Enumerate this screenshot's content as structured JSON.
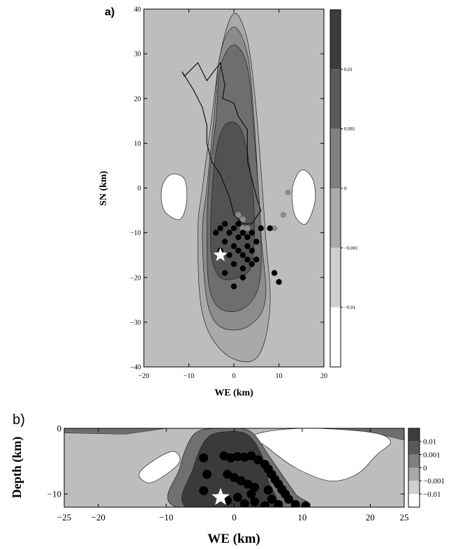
{
  "chart_data": [
    {
      "panel_label": "a)",
      "type": "heatmap",
      "xlabel": "WE (km)",
      "ylabel": "SN (km)",
      "xlim": [
        -20,
        20
      ],
      "ylim": [
        -40,
        40
      ],
      "xticks": [
        -20,
        -10,
        0,
        10,
        20
      ],
      "yticks": [
        -40,
        -30,
        -20,
        -10,
        0,
        10,
        20,
        30,
        40
      ],
      "colorbar": {
        "levels": [
          "0.01",
          "0.001",
          "0",
          "-0.001",
          "-0.01"
        ],
        "colors": [
          "#3c3c3c",
          "#5a5a5a",
          "#808080",
          "#a9a9a9",
          "#cfcfcf",
          "#ffffff"
        ]
      },
      "background_color": "#bdbdbd",
      "contours": [
        {
          "level": "-0.01",
          "color": "#ffffff",
          "points": [
            [
              -14,
              3
            ],
            [
              -11,
              2
            ],
            [
              -10.5,
              -3
            ],
            [
              -12,
              -7
            ],
            [
              -15.5,
              -5
            ],
            [
              -16,
              0
            ]
          ]
        },
        {
          "level": "-0.01",
          "color": "#ffffff",
          "points": [
            [
              15,
              4
            ],
            [
              17.5,
              2
            ],
            [
              18,
              -3
            ],
            [
              16,
              -8
            ],
            [
              13.5,
              -6
            ],
            [
              13,
              0
            ]
          ]
        },
        {
          "level": "0",
          "color": "#a9a9a9",
          "points": [
            [
              -5,
              15
            ],
            [
              -3,
              30
            ],
            [
              0,
              39
            ],
            [
              3,
              33
            ],
            [
              5,
              17
            ],
            [
              7,
              -10
            ],
            [
              8,
              -27
            ],
            [
              5,
              -38
            ],
            [
              -2,
              -37
            ],
            [
              -7,
              -28
            ],
            [
              -8,
              -10
            ],
            [
              -7,
              0
            ]
          ]
        },
        {
          "level": "0.001",
          "color": "#8c8c8c",
          "points": [
            [
              -4.5,
              15
            ],
            [
              -3,
              30
            ],
            [
              0,
              36
            ],
            [
              3,
              30
            ],
            [
              4.5,
              15
            ],
            [
              6,
              -10
            ],
            [
              7,
              -25
            ],
            [
              3,
              -31
            ],
            [
              -3,
              -31
            ],
            [
              -6,
              -25
            ],
            [
              -7,
              -10
            ],
            [
              -6,
              0
            ]
          ]
        },
        {
          "level": "0.01",
          "color": "#6e6e6e",
          "points": [
            [
              -4,
              15
            ],
            [
              -3,
              27
            ],
            [
              0,
              32
            ],
            [
              3,
              27
            ],
            [
              4.5,
              12
            ],
            [
              6,
              -10
            ],
            [
              5.5,
              -22
            ],
            [
              2,
              -27
            ],
            [
              -3,
              -27
            ],
            [
              -5.5,
              -22
            ],
            [
              -6,
              -10
            ],
            [
              -5.5,
              2
            ]
          ]
        },
        {
          "level": "0.01",
          "color": "#525252",
          "points": [
            [
              -4,
              8
            ],
            [
              -2,
              14
            ],
            [
              1,
              14
            ],
            [
              3,
              8
            ],
            [
              4.5,
              -5
            ],
            [
              4,
              -17
            ],
            [
              1,
              -20
            ],
            [
              -3,
              -20
            ],
            [
              -5,
              -15
            ],
            [
              -5,
              -4
            ]
          ]
        }
      ],
      "outline": [
        [
          -11,
          25
        ],
        [
          -8,
          28
        ],
        [
          -6,
          24
        ],
        [
          -3,
          28
        ],
        [
          -2,
          23
        ],
        [
          -2.5,
          20
        ],
        [
          0,
          19
        ],
        [
          1,
          16
        ],
        [
          3,
          13
        ],
        [
          3,
          6
        ],
        [
          4,
          2
        ],
        [
          5,
          -2
        ],
        [
          6,
          -5
        ],
        [
          4,
          -8
        ],
        [
          2,
          -8
        ],
        [
          0,
          -6
        ],
        [
          -1,
          -2
        ],
        [
          -3,
          3
        ],
        [
          -5,
          6
        ],
        [
          -6,
          10
        ],
        [
          -6,
          14
        ],
        [
          -7,
          18
        ],
        [
          -9,
          22
        ],
        [
          -11.5,
          26
        ]
      ],
      "events_black": [
        [
          -3,
          -9
        ],
        [
          -2,
          -8
        ],
        [
          -1,
          -10
        ],
        [
          0,
          -9
        ],
        [
          1,
          -11
        ],
        [
          2,
          -10
        ],
        [
          -2,
          -12
        ],
        [
          0,
          -13
        ],
        [
          1,
          -14
        ],
        [
          2,
          -15
        ],
        [
          3,
          -13
        ],
        [
          4,
          -14
        ],
        [
          3,
          -16
        ],
        [
          4,
          -17
        ],
        [
          5,
          -16
        ],
        [
          2,
          -18
        ],
        [
          0,
          -17
        ],
        [
          -1,
          -15
        ],
        [
          -3,
          -14
        ],
        [
          3,
          -11
        ],
        [
          4,
          -10
        ],
        [
          1,
          -8
        ],
        [
          6,
          -9
        ],
        [
          8,
          -9
        ],
        [
          9,
          -19
        ],
        [
          10,
          -21
        ],
        [
          0,
          -22
        ],
        [
          -4,
          -10
        ],
        [
          5,
          -12
        ],
        [
          2,
          -20
        ],
        [
          -2,
          -19
        ]
      ],
      "events_gray": [
        [
          12,
          -1
        ],
        [
          11,
          -6
        ],
        [
          9,
          -9
        ],
        [
          2,
          -9
        ],
        [
          3,
          -9
        ],
        [
          1,
          -6
        ],
        [
          2,
          -7
        ]
      ],
      "mainshock": [
        -3,
        -15
      ]
    },
    {
      "panel_label": "b)",
      "type": "heatmap",
      "xlabel": "WE (km)",
      "ylabel": "Depth (km)",
      "xlim": [
        -25,
        25
      ],
      "ylim": [
        -12,
        0
      ],
      "xticks": [
        -25,
        -20,
        -10,
        0,
        10,
        20,
        25
      ],
      "yticks": [
        -10,
        0
      ],
      "colorbar": {
        "levels": [
          "0.01",
          "0.001",
          "0",
          "-0.001",
          "-0.01"
        ],
        "colors": [
          "#3c3c3c",
          "#5a5a5a",
          "#808080",
          "#a9a9a9",
          "#cfcfcf",
          "#ffffff"
        ]
      },
      "background_color": "#bdbdbd",
      "contours": [
        {
          "level": "-0.01",
          "color": "#ffffff",
          "points": [
            [
              -14,
              -7
            ],
            [
              -12,
              -5
            ],
            [
              -9,
              -3.5
            ],
            [
              -8,
              -5
            ],
            [
              -10,
              -7
            ],
            [
              -12.5,
              -8.3
            ]
          ]
        },
        {
          "level": "-0.01",
          "color": "#ffffff",
          "points": [
            [
              3,
              -1
            ],
            [
              10,
              0
            ],
            [
              20,
              -0.6
            ],
            [
              23,
              -2
            ],
            [
              21,
              -4
            ],
            [
              18,
              -7
            ],
            [
              14,
              -8
            ],
            [
              9,
              -6
            ],
            [
              5,
              -3
            ]
          ]
        },
        {
          "level": "0",
          "color": "#707070",
          "points": [
            [
              -8.5,
              -12
            ],
            [
              -8,
              -6
            ],
            [
              -6,
              -1
            ],
            [
              -3,
              0
            ],
            [
              1,
              0
            ],
            [
              3,
              -1
            ],
            [
              5,
              -4
            ],
            [
              7,
              -7
            ],
            [
              9,
              -10
            ],
            [
              10,
              -12
            ]
          ]
        },
        {
          "level": "0.01",
          "color": "#3a3a3a",
          "points": [
            [
              -7,
              -12
            ],
            [
              -6,
              -6
            ],
            [
              -4,
              -1.5
            ],
            [
              -1,
              -0.5
            ],
            [
              2,
              -1
            ],
            [
              4,
              -4
            ],
            [
              5,
              -8
            ],
            [
              5.5,
              -12
            ]
          ]
        }
      ],
      "surface_bands": [
        {
          "side": "left",
          "color": "#6e6e6e",
          "points": [
            [
              -25,
              0
            ],
            [
              -10,
              0
            ],
            [
              -16,
              -0.9
            ],
            [
              -25,
              -0.7
            ]
          ]
        },
        {
          "side": "right",
          "color": "#6e6e6e",
          "points": [
            [
              25,
              0
            ],
            [
              13,
              0
            ],
            [
              20,
              -0.6
            ],
            [
              25,
              -1.8
            ]
          ]
        }
      ],
      "events_black": [
        [
          -4.5,
          -4.5
        ],
        [
          -4,
          -7
        ],
        [
          -4.5,
          -9.5
        ],
        [
          -1.5,
          -4.2
        ],
        [
          -0.5,
          -4.5
        ],
        [
          0.5,
          -4.3
        ],
        [
          1.5,
          -4.4
        ],
        [
          2.5,
          -4.2
        ],
        [
          3.5,
          -4.8
        ],
        [
          4.5,
          -5.5
        ],
        [
          5,
          -6.2
        ],
        [
          5.5,
          -7
        ],
        [
          6,
          -7.8
        ],
        [
          6.5,
          -8.5
        ],
        [
          7,
          -9.3
        ],
        [
          7.5,
          -10
        ],
        [
          8,
          -10.8
        ],
        [
          9,
          -11.6
        ],
        [
          10.5,
          -11.8
        ],
        [
          -1,
          -7
        ],
        [
          0,
          -7.5
        ],
        [
          1,
          -8
        ],
        [
          2,
          -8.5
        ],
        [
          3,
          -9
        ],
        [
          0.5,
          -10.5
        ],
        [
          1.5,
          -11.5
        ],
        [
          3,
          -11.2
        ],
        [
          4.5,
          -11.8
        ],
        [
          5.5,
          -10.8
        ],
        [
          -1,
          -11
        ],
        [
          2.5,
          -10
        ],
        [
          5,
          -9.4
        ],
        [
          6.5,
          -11.6
        ]
      ],
      "mainshock": [
        -2,
        -10.5
      ]
    }
  ]
}
